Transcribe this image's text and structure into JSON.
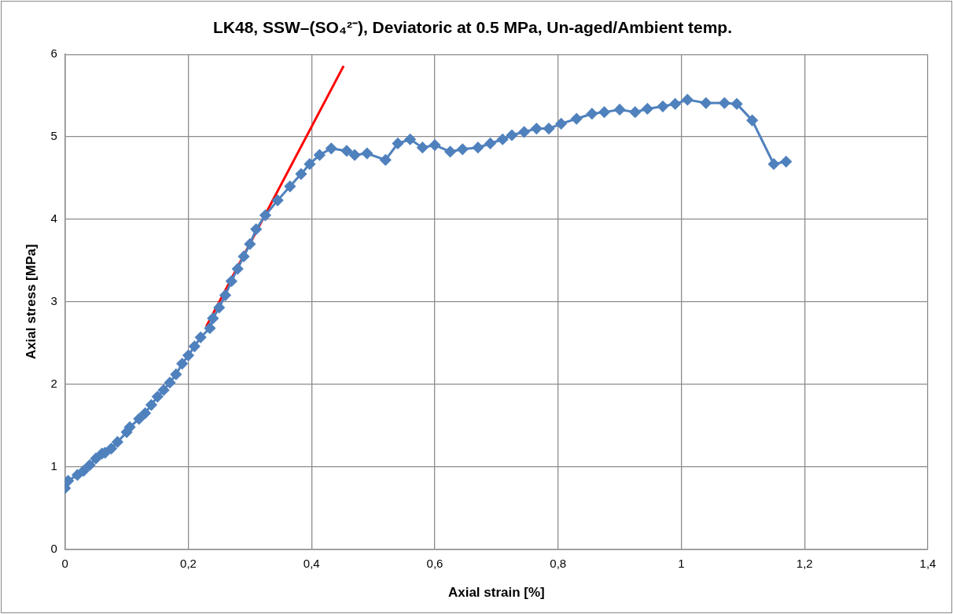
{
  "chart_data": {
    "type": "line",
    "title": "LK48, SSW–(SO₄²⁻), Deviatoric at 0.5 MPa, Un-aged/Ambient temp.",
    "xlabel": "Axial strain [%]",
    "ylabel": "Axial stress [MPa]",
    "xlim": [
      0,
      1.4
    ],
    "xticks": [
      0,
      {
        "value": 0.2,
        "label": "0,2"
      },
      {
        "value": 0.4,
        "label": "0,4"
      },
      {
        "value": 0.6,
        "label": "0,6"
      },
      {
        "value": 0.8,
        "label": "0,8"
      },
      1,
      {
        "value": 1.2,
        "label": "1,2"
      },
      {
        "value": 1.4,
        "label": "1,4"
      }
    ],
    "ylim": [
      0,
      6
    ],
    "yticks": [
      0,
      1,
      2,
      3,
      4,
      5,
      6
    ],
    "grid": true,
    "legend": false,
    "line_style": "solid",
    "series": [
      {
        "color": "#4f81bd",
        "marker": "diamond",
        "x": [
          0,
          0.005,
          0.02,
          0.03,
          0.04,
          0.05,
          0.06,
          0.065,
          0.075,
          0.085,
          0.1,
          0.105,
          0.12,
          0.13,
          0.14,
          0.15,
          0.16,
          0.17,
          0.18,
          0.19,
          0.2,
          0.21,
          0.22,
          0.235,
          0.24,
          0.25,
          0.26,
          0.27,
          0.28,
          0.29,
          0.3,
          0.31,
          0.325,
          0.345,
          0.365,
          0.383,
          0.397,
          0.413,
          0.432,
          0.457,
          0.47,
          0.49,
          0.52,
          0.54,
          0.56,
          0.58,
          0.6,
          0.625,
          0.645,
          0.67,
          0.69,
          0.71,
          0.725,
          0.745,
          0.765,
          0.785,
          0.805,
          0.83,
          0.855,
          0.875,
          0.9,
          0.925,
          0.945,
          0.97,
          0.99,
          1.01,
          1.04,
          1.07,
          1.09,
          1.115,
          1.15,
          1.17
        ],
        "values": [
          0.74,
          0.83,
          0.9,
          0.95,
          1.02,
          1.1,
          1.16,
          1.17,
          1.22,
          1.3,
          1.42,
          1.48,
          1.58,
          1.65,
          1.75,
          1.85,
          1.93,
          2.02,
          2.12,
          2.25,
          2.35,
          2.46,
          2.57,
          2.68,
          2.8,
          2.93,
          3.08,
          3.25,
          3.4,
          3.55,
          3.7,
          3.88,
          4.05,
          4.23,
          4.4,
          4.55,
          4.67,
          4.78,
          4.86,
          4.83,
          4.78,
          4.8,
          4.72,
          4.92,
          4.97,
          4.87,
          4.9,
          4.82,
          4.85,
          4.87,
          4.92,
          4.97,
          5.02,
          5.06,
          5.1,
          5.1,
          5.16,
          5.22,
          5.28,
          5.3,
          5.33,
          5.3,
          5.34,
          5.37,
          5.4,
          5.45,
          5.41,
          5.41,
          5.4,
          5.2,
          4.67,
          4.7
        ]
      },
      {
        "color": "#ff0000",
        "marker": "none",
        "x": [
          0.229,
          0.452
        ],
        "values": [
          2.7,
          5.86
        ]
      }
    ]
  }
}
